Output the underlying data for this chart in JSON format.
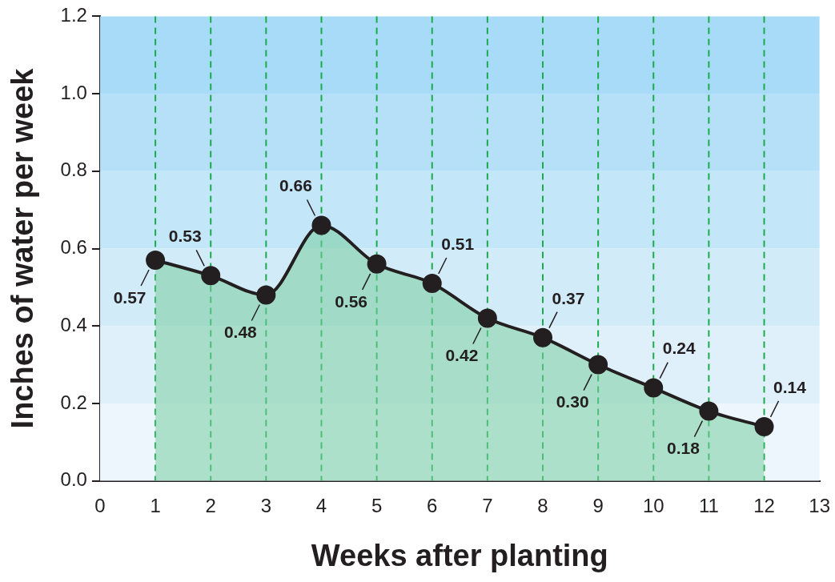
{
  "chart_data": {
    "type": "area",
    "xlabel": "Weeks after planting",
    "ylabel": "Inches of water per week",
    "x": [
      1,
      2,
      3,
      4,
      5,
      6,
      7,
      8,
      9,
      10,
      11,
      12
    ],
    "series": [
      {
        "color": "#231f20",
        "values": [
          0.57,
          0.53,
          0.48,
          0.66,
          0.56,
          0.51,
          0.42,
          0.37,
          0.3,
          0.24,
          0.18,
          0.14
        ],
        "value_labels": [
          "0.57",
          "0.53",
          "0.48",
          "0.66",
          "0.56",
          "0.51",
          "0.42",
          "0.37",
          "0.30",
          "0.24",
          "0.18",
          "0.14"
        ]
      }
    ],
    "xlim": [
      0,
      13
    ],
    "xticks": [
      0,
      1,
      2,
      3,
      4,
      5,
      6,
      7,
      8,
      9,
      10,
      11,
      12,
      13
    ],
    "ylim": [
      0,
      1.2
    ],
    "yticks": [
      {
        "value": 0,
        "label": "0.0"
      },
      {
        "value": 0.2,
        "label": "0.2"
      },
      {
        "value": 0.4,
        "label": "0.4"
      },
      {
        "value": 0.6,
        "label": "0.6"
      },
      {
        "value": 0.8,
        "label": "0.8"
      },
      {
        "value": 1.0,
        "label": "1.0"
      },
      {
        "value": 1.2,
        "label": "1.2"
      }
    ],
    "grid": false,
    "legend": false,
    "marker": "circle",
    "line_style": "solid",
    "bands": [
      {
        "axis": "y",
        "from": 0,
        "to": 0.2,
        "color": "#eef6fd"
      },
      {
        "axis": "y",
        "from": 0.2,
        "to": 0.4,
        "color": "#e0f0fb"
      },
      {
        "axis": "y",
        "from": 0.4,
        "to": 0.6,
        "color": "#d2ebf9"
      },
      {
        "axis": "y",
        "from": 0.6,
        "to": 0.8,
        "color": "#c3e6f9"
      },
      {
        "axis": "y",
        "from": 0.8,
        "to": 1.0,
        "color": "#b5e0f8"
      },
      {
        "axis": "y",
        "from": 1.0,
        "to": 1.2,
        "color": "#a7dbf8"
      }
    ],
    "ref_lines": [
      {
        "axis": "x",
        "value": 1,
        "color": "#1aab4a",
        "line_style": "dashed"
      },
      {
        "axis": "x",
        "value": 2,
        "color": "#1aab4a",
        "line_style": "dashed"
      },
      {
        "axis": "x",
        "value": 3,
        "color": "#1aab4a",
        "line_style": "dashed"
      },
      {
        "axis": "x",
        "value": 4,
        "color": "#1aab4a",
        "line_style": "dashed"
      },
      {
        "axis": "x",
        "value": 5,
        "color": "#1aab4a",
        "line_style": "dashed"
      },
      {
        "axis": "x",
        "value": 6,
        "color": "#1aab4a",
        "line_style": "dashed"
      },
      {
        "axis": "x",
        "value": 7,
        "color": "#1aab4a",
        "line_style": "dashed"
      },
      {
        "axis": "x",
        "value": 8,
        "color": "#1aab4a",
        "line_style": "dashed"
      },
      {
        "axis": "x",
        "value": 9,
        "color": "#1aab4a",
        "line_style": "dashed"
      },
      {
        "axis": "x",
        "value": 10,
        "color": "#1aab4a",
        "line_style": "dashed"
      },
      {
        "axis": "x",
        "value": 11,
        "color": "#1aab4a",
        "line_style": "dashed"
      },
      {
        "axis": "x",
        "value": 12,
        "color": "#1aab4a",
        "line_style": "dashed"
      }
    ]
  }
}
